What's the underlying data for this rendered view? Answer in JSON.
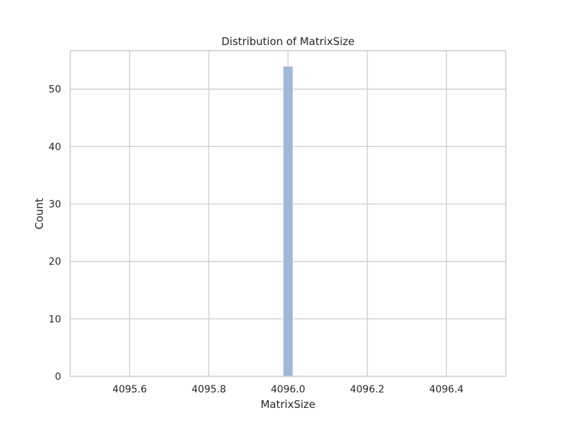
{
  "chart_data": {
    "type": "bar",
    "title": "Distribution of MatrixSize",
    "xlabel": "MatrixSize",
    "ylabel": "Count",
    "bins": [
      {
        "x0": 4095.9875,
        "x1": 4096.0125,
        "count": 54
      }
    ],
    "xlim": [
      4095.45,
      4096.55
    ],
    "ylim": [
      0,
      56.7
    ],
    "xticks": [
      4095.6,
      4095.8,
      4096.0,
      4096.2,
      4096.4
    ],
    "xtick_labels": [
      "4095.6",
      "4095.8",
      "4096.0",
      "4096.2",
      "4096.4"
    ],
    "yticks": [
      0,
      10,
      20,
      30,
      40,
      50
    ],
    "ytick_labels": [
      "0",
      "10",
      "20",
      "30",
      "40",
      "50"
    ],
    "grid": true,
    "legend": "none",
    "colors": {
      "bar_fill": "#a3b6da",
      "bar_stroke": "#ffffff",
      "grid": "#cccccc",
      "frame": "#cccccc",
      "text": "#262626"
    }
  }
}
